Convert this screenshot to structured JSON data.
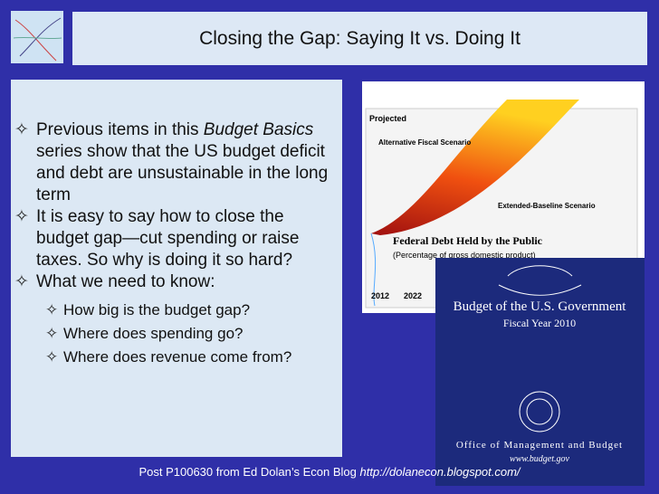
{
  "title": "Closing the Gap: Saying It vs. Doing It",
  "bullets": [
    {
      "before": "Previous items in this ",
      "italic": "Budget Basics",
      "after": " series show that the US budget deficit  and debt are unsustainable in the long term"
    },
    {
      "text": "It is easy to say how to close the budget  gap—cut spending or raise taxes. So why is doing it so hard?"
    },
    {
      "text": "What we need to know:",
      "subitems": [
        "How big is the budget gap?",
        "Where does spending go?",
        "Where does revenue come from?"
      ]
    }
  ],
  "chart_image": {
    "projected": "Projected",
    "alternative": "Alternative Fiscal Scenario",
    "baseline": "Extended-Baseline Scenario",
    "heading": "Federal Debt Held by the Public",
    "subheading": "(Percentage of gross domestic product)",
    "years": [
      "2012",
      "2022"
    ]
  },
  "book_cover": {
    "title": "Budget of the U.S. Government",
    "subtitle": "Fiscal Year 2010",
    "office": "Office of Management and Budget",
    "url": "www.budget.gov"
  },
  "footer": {
    "text": "Post P100630 from Ed Dolan’s Econ Blog ",
    "link": "http://dolanecon.blogspot.com/"
  }
}
